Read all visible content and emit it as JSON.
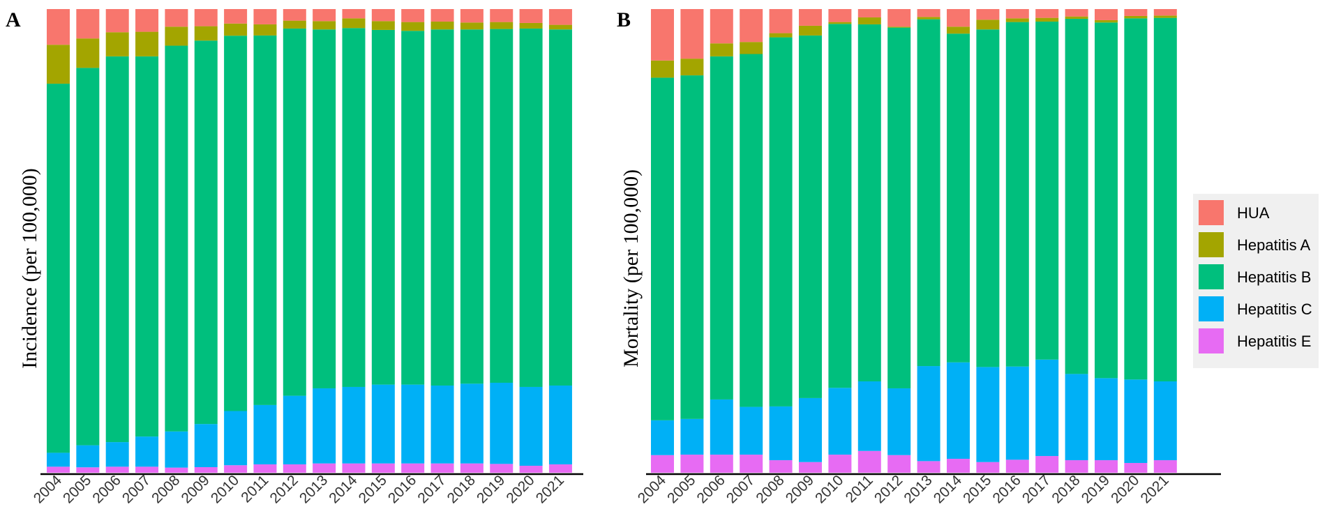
{
  "chart_data": [
    {
      "type": "bar",
      "stacked": true,
      "normalized": true,
      "panel_label": "A",
      "ylabel": "Incidence (per 100,000)",
      "xlabel": "",
      "categories": [
        "2004",
        "2005",
        "2006",
        "2007",
        "2008",
        "2009",
        "2010",
        "2011",
        "2012",
        "2013",
        "2014",
        "2015",
        "2016",
        "2017",
        "2018",
        "2019",
        "2020",
        "2021"
      ],
      "series": [
        {
          "name": "Hepatitis E",
          "values": [
            1.3,
            1.1,
            1.3,
            1.3,
            1.1,
            1.2,
            1.6,
            1.8,
            1.8,
            2.0,
            2.0,
            2.0,
            2.0,
            2.0,
            2.0,
            1.9,
            1.5,
            1.8
          ]
        },
        {
          "name": "Hepatitis C",
          "values": [
            3.0,
            4.5,
            5.3,
            6.5,
            7.8,
            9.3,
            11.6,
            12.8,
            14.8,
            16.2,
            16.5,
            17.0,
            17.0,
            16.8,
            17.2,
            17.5,
            17.0,
            17.0
          ]
        },
        {
          "name": "Hepatitis B",
          "values": [
            79.6,
            77.0,
            83.2,
            82.0,
            83.2,
            82.7,
            80.3,
            79.7,
            79.2,
            77.4,
            77.4,
            76.5,
            76.3,
            76.8,
            76.4,
            76.3,
            77.3,
            76.8
          ]
        },
        {
          "name": "Hepatitis A",
          "values": [
            8.4,
            6.0,
            5.2,
            5.3,
            4.1,
            3.1,
            2.6,
            2.4,
            1.7,
            1.8,
            2.1,
            1.9,
            1.9,
            1.7,
            1.5,
            1.5,
            1.2,
            1.0
          ]
        },
        {
          "name": "HUA",
          "values": [
            7.7,
            6.0,
            5.0,
            4.9,
            3.8,
            3.7,
            3.1,
            3.3,
            2.5,
            2.6,
            2.0,
            2.6,
            2.8,
            2.7,
            2.9,
            2.8,
            3.0,
            3.4
          ]
        }
      ],
      "ylim": [
        0,
        100
      ]
    },
    {
      "type": "bar",
      "stacked": true,
      "normalized": true,
      "panel_label": "B",
      "ylabel": "Mortality (per 100,000)",
      "xlabel": "",
      "categories": [
        "2004",
        "2005",
        "2006",
        "2007",
        "2008",
        "2009",
        "2010",
        "2011",
        "2012",
        "2013",
        "2014",
        "2015",
        "2016",
        "2017",
        "2018",
        "2019",
        "2020",
        "2021"
      ],
      "series": [
        {
          "name": "Hepatitis E",
          "values": [
            3.8,
            3.9,
            3.9,
            3.9,
            2.7,
            2.3,
            3.9,
            4.7,
            3.8,
            2.5,
            3.0,
            2.3,
            2.8,
            3.6,
            2.7,
            2.7,
            2.1,
            2.7
          ]
        },
        {
          "name": "Hepatitis C",
          "values": [
            7.5,
            7.7,
            11.9,
            10.3,
            11.6,
            13.8,
            14.4,
            15.0,
            14.4,
            20.5,
            20.8,
            20.5,
            20.1,
            20.8,
            18.6,
            17.7,
            18.0,
            17.0
          ]
        },
        {
          "name": "Hepatitis B",
          "values": [
            73.9,
            74.1,
            74.0,
            76.1,
            79.6,
            78.2,
            78.5,
            77.0,
            77.8,
            74.8,
            70.9,
            72.8,
            74.3,
            72.9,
            76.6,
            76.7,
            77.9,
            78.4
          ]
        },
        {
          "name": "Hepatitis A",
          "values": [
            3.7,
            3.6,
            2.8,
            2.6,
            0.9,
            2.1,
            0.4,
            1.5,
            0.2,
            0.5,
            1.5,
            2.1,
            0.8,
            0.8,
            0.5,
            0.5,
            0.5,
            0.5
          ]
        },
        {
          "name": "HUA",
          "values": [
            11.1,
            10.7,
            7.4,
            7.1,
            5.2,
            3.6,
            2.8,
            1.8,
            3.8,
            1.7,
            3.8,
            2.3,
            2.0,
            1.9,
            1.6,
            2.4,
            1.5,
            1.4
          ]
        }
      ],
      "ylim": [
        0,
        100
      ]
    }
  ],
  "legend": {
    "placement": "right",
    "entries": [
      {
        "name": "HUA",
        "color": "#F8766D"
      },
      {
        "name": "Hepatitis A",
        "color": "#A3A500"
      },
      {
        "name": "Hepatitis B",
        "color": "#00BF7D"
      },
      {
        "name": "Hepatitis C",
        "color": "#00B0F6"
      },
      {
        "name": "Hepatitis E",
        "color": "#E76BF3"
      }
    ]
  },
  "colors": {
    "HUA": "#F8766D",
    "Hepatitis A": "#A3A500",
    "Hepatitis B": "#00BF7D",
    "Hepatitis C": "#00B0F6",
    "Hepatitis E": "#E76BF3",
    "axis": "#000000",
    "legend_bg": "#F0F0F0"
  }
}
